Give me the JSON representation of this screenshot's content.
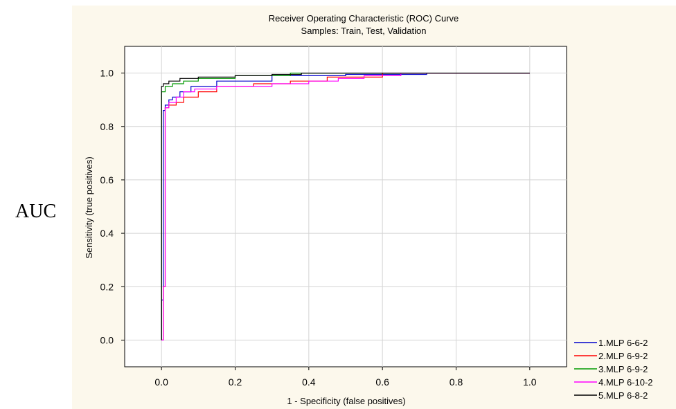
{
  "side_label": "AUC",
  "chart_data": {
    "type": "line",
    "title": "Receiver Operating Characteristic (ROC) Curve",
    "subtitle": "Samples: Train, Test, Validation",
    "xlabel": "1 - Specificity (false positives)",
    "ylabel": "Sensitivity (true positives)",
    "xlim": [
      -0.1,
      1.1
    ],
    "ylim": [
      -0.1,
      1.1
    ],
    "x_ticks": [
      "0.0",
      "0.2",
      "0.4",
      "0.6",
      "0.8",
      "1.0"
    ],
    "y_ticks": [
      "0.0",
      "0.2",
      "0.4",
      "0.6",
      "0.8",
      "1.0"
    ],
    "grid": true,
    "legend_position": "bottom-right",
    "background_color": "#fcf8ec",
    "series": [
      {
        "name": "1.MLP 6-6-2",
        "color": "#0000cc",
        "points": [
          [
            0,
            0
          ],
          [
            0,
            0.15
          ],
          [
            0.005,
            0.15
          ],
          [
            0.005,
            0.86
          ],
          [
            0.01,
            0.88
          ],
          [
            0.02,
            0.9
          ],
          [
            0.03,
            0.91
          ],
          [
            0.05,
            0.93
          ],
          [
            0.08,
            0.95
          ],
          [
            0.15,
            0.97
          ],
          [
            0.3,
            0.99
          ],
          [
            0.5,
            0.995
          ],
          [
            0.72,
            1.0
          ],
          [
            1.0,
            1.0
          ]
        ]
      },
      {
        "name": "2.MLP 6-9-2",
        "color": "#ff0000",
        "points": [
          [
            0,
            0
          ],
          [
            0.005,
            0.2
          ],
          [
            0.01,
            0.56
          ],
          [
            0.01,
            0.87
          ],
          [
            0.02,
            0.88
          ],
          [
            0.04,
            0.89
          ],
          [
            0.06,
            0.91
          ],
          [
            0.1,
            0.93
          ],
          [
            0.15,
            0.95
          ],
          [
            0.25,
            0.96
          ],
          [
            0.35,
            0.97
          ],
          [
            0.45,
            0.985
          ],
          [
            0.6,
            1.0
          ],
          [
            1.0,
            1.0
          ]
        ]
      },
      {
        "name": "3.MLP 6-9-2",
        "color": "#009900",
        "points": [
          [
            0,
            0
          ],
          [
            0,
            0.93
          ],
          [
            0.01,
            0.95
          ],
          [
            0.03,
            0.96
          ],
          [
            0.06,
            0.97
          ],
          [
            0.1,
            0.98
          ],
          [
            0.2,
            0.99
          ],
          [
            0.35,
            1.0
          ],
          [
            1.0,
            1.0
          ]
        ]
      },
      {
        "name": "4.MLP 6-10-2",
        "color": "#ff00ff",
        "points": [
          [
            0,
            0
          ],
          [
            0.005,
            0.2
          ],
          [
            0.01,
            0.87
          ],
          [
            0.02,
            0.89
          ],
          [
            0.04,
            0.91
          ],
          [
            0.06,
            0.93
          ],
          [
            0.09,
            0.94
          ],
          [
            0.15,
            0.95
          ],
          [
            0.3,
            0.96
          ],
          [
            0.4,
            0.97
          ],
          [
            0.48,
            0.98
          ],
          [
            0.55,
            0.99
          ],
          [
            0.65,
            1.0
          ],
          [
            1.0,
            1.0
          ]
        ]
      },
      {
        "name": "5.MLP 6-8-2",
        "color": "#000000",
        "points": [
          [
            0,
            0
          ],
          [
            0,
            0.95
          ],
          [
            0.005,
            0.96
          ],
          [
            0.02,
            0.97
          ],
          [
            0.05,
            0.98
          ],
          [
            0.1,
            0.985
          ],
          [
            0.2,
            0.99
          ],
          [
            0.3,
            0.995
          ],
          [
            0.38,
            1.0
          ],
          [
            1.0,
            1.0
          ]
        ]
      }
    ]
  }
}
